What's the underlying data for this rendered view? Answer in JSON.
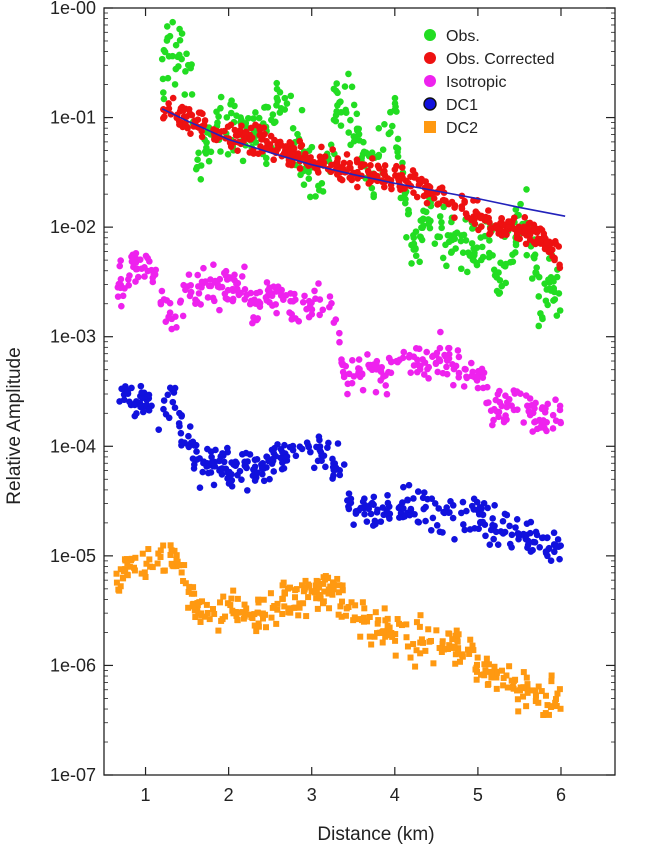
{
  "chart_data": {
    "type": "scatter",
    "xlabel": "Distance (km)",
    "ylabel": "Relative Amplitude",
    "xlim": [
      0.5,
      6.65
    ],
    "ylim_log10": [
      -7,
      0
    ],
    "y_scale": "log",
    "grid": false,
    "legend_position": "top-right",
    "x_ticks": [
      {
        "value": 1,
        "label": "1"
      },
      {
        "value": 2,
        "label": "2"
      },
      {
        "value": 3,
        "label": "3"
      },
      {
        "value": 4,
        "label": "4"
      },
      {
        "value": 5,
        "label": "5"
      },
      {
        "value": 6,
        "label": "6"
      }
    ],
    "y_ticks": [
      {
        "exp": 0,
        "label": "1e-00"
      },
      {
        "exp": -1,
        "label": "1e-01"
      },
      {
        "exp": -2,
        "label": "1e-02"
      },
      {
        "exp": -3,
        "label": "1e-03"
      },
      {
        "exp": -4,
        "label": "1e-04"
      },
      {
        "exp": -5,
        "label": "1e-05"
      },
      {
        "exp": -6,
        "label": "1e-06"
      },
      {
        "exp": -7,
        "label": "1e-07"
      }
    ],
    "series": [
      {
        "name": "Obs.",
        "marker": "circle",
        "color": "#22dd22",
        "trend": [
          [
            1.2,
            -0.55
          ],
          [
            1.3,
            -0.35
          ],
          [
            1.4,
            -0.4
          ],
          [
            1.55,
            -0.5
          ],
          [
            1.6,
            -1.6
          ],
          [
            1.7,
            -1.2
          ],
          [
            2.0,
            -1.1
          ],
          [
            2.3,
            -1.15
          ],
          [
            2.6,
            -1.0
          ],
          [
            2.8,
            -1.2
          ],
          [
            3.05,
            -1.6
          ],
          [
            3.2,
            -1.5
          ],
          [
            3.3,
            -0.85
          ],
          [
            3.5,
            -1.0
          ],
          [
            3.7,
            -1.55
          ],
          [
            3.9,
            -1.2
          ],
          [
            4.0,
            -0.95
          ],
          [
            4.1,
            -1.6
          ],
          [
            4.25,
            -2.2
          ],
          [
            4.4,
            -1.9
          ],
          [
            4.6,
            -2.1
          ],
          [
            4.8,
            -2.0
          ],
          [
            5.0,
            -2.2
          ],
          [
            5.15,
            -2.0
          ],
          [
            5.25,
            -2.5
          ],
          [
            5.45,
            -2.0
          ],
          [
            5.6,
            -1.9
          ],
          [
            5.75,
            -2.6
          ],
          [
            6.0,
            -2.6
          ]
        ],
        "spread": 0.3,
        "count": 420
      },
      {
        "name": "Obs. Corrected",
        "marker": "circle",
        "color": "#ee1111",
        "trend": [
          [
            1.2,
            -0.95
          ],
          [
            1.5,
            -1.0
          ],
          [
            1.8,
            -1.15
          ],
          [
            2.1,
            -1.2
          ],
          [
            2.4,
            -1.22
          ],
          [
            2.7,
            -1.3
          ],
          [
            3.0,
            -1.4
          ],
          [
            3.3,
            -1.45
          ],
          [
            3.6,
            -1.5
          ],
          [
            3.9,
            -1.55
          ],
          [
            4.2,
            -1.6
          ],
          [
            4.5,
            -1.7
          ],
          [
            4.8,
            -1.8
          ],
          [
            5.1,
            -1.95
          ],
          [
            5.4,
            -2.0
          ],
          [
            5.7,
            -2.05
          ],
          [
            6.0,
            -2.3
          ]
        ],
        "spread": 0.12,
        "count": 420
      },
      {
        "name": "Isotropic",
        "marker": "circle",
        "color": "#ee22ee",
        "trend": [
          [
            0.65,
            -2.55
          ],
          [
            0.85,
            -2.4
          ],
          [
            1.0,
            -2.3
          ],
          [
            1.2,
            -2.6
          ],
          [
            1.35,
            -2.9
          ],
          [
            1.5,
            -2.6
          ],
          [
            1.7,
            -2.55
          ],
          [
            2.0,
            -2.5
          ],
          [
            2.3,
            -2.7
          ],
          [
            2.6,
            -2.6
          ],
          [
            2.9,
            -2.75
          ],
          [
            3.1,
            -2.7
          ],
          [
            3.3,
            -2.8
          ],
          [
            3.4,
            -3.4
          ],
          [
            3.6,
            -3.3
          ],
          [
            3.9,
            -3.35
          ],
          [
            4.1,
            -3.1
          ],
          [
            4.3,
            -3.25
          ],
          [
            4.6,
            -3.2
          ],
          [
            4.8,
            -3.3
          ],
          [
            5.0,
            -3.35
          ],
          [
            5.2,
            -3.65
          ],
          [
            5.5,
            -3.55
          ],
          [
            5.7,
            -3.75
          ],
          [
            6.0,
            -3.7
          ]
        ],
        "spread": 0.18,
        "count": 380
      },
      {
        "name": "DC1",
        "marker": "circle",
        "color": "#1111dd",
        "trend": [
          [
            0.65,
            -3.55
          ],
          [
            0.9,
            -3.6
          ],
          [
            1.2,
            -3.7
          ],
          [
            1.35,
            -3.5
          ],
          [
            1.45,
            -3.95
          ],
          [
            1.7,
            -4.2
          ],
          [
            2.0,
            -4.15
          ],
          [
            2.3,
            -4.2
          ],
          [
            2.6,
            -4.1
          ],
          [
            2.9,
            -4.0
          ],
          [
            3.2,
            -4.1
          ],
          [
            3.4,
            -4.3
          ],
          [
            3.5,
            -4.55
          ],
          [
            3.8,
            -4.6
          ],
          [
            4.1,
            -4.55
          ],
          [
            4.4,
            -4.6
          ],
          [
            4.7,
            -4.65
          ],
          [
            5.0,
            -4.6
          ],
          [
            5.2,
            -4.75
          ],
          [
            5.5,
            -4.8
          ],
          [
            5.8,
            -4.9
          ],
          [
            6.0,
            -4.95
          ]
        ],
        "spread": 0.17,
        "count": 380
      },
      {
        "name": "DC2",
        "marker": "square",
        "color": "#ff9911",
        "trend": [
          [
            0.65,
            -5.15
          ],
          [
            0.9,
            -5.1
          ],
          [
            1.2,
            -5.0
          ],
          [
            1.4,
            -5.05
          ],
          [
            1.6,
            -5.5
          ],
          [
            2.0,
            -5.5
          ],
          [
            2.3,
            -5.6
          ],
          [
            2.6,
            -5.4
          ],
          [
            2.9,
            -5.35
          ],
          [
            3.2,
            -5.35
          ],
          [
            3.45,
            -5.5
          ],
          [
            3.7,
            -5.6
          ],
          [
            4.0,
            -5.7
          ],
          [
            4.3,
            -5.8
          ],
          [
            4.6,
            -5.75
          ],
          [
            4.9,
            -5.9
          ],
          [
            5.2,
            -6.1
          ],
          [
            5.5,
            -6.2
          ],
          [
            5.8,
            -6.3
          ],
          [
            6.0,
            -6.3
          ]
        ],
        "spread": 0.18,
        "count": 380
      }
    ],
    "fit_line": {
      "name": "DC1",
      "color": "#2222bb",
      "x": [
        1.2,
        1.5,
        2.0,
        2.5,
        3.0,
        3.5,
        4.0,
        4.5,
        5.0,
        5.5,
        6.05
      ],
      "y_log10": [
        -0.92,
        -1.03,
        -1.2,
        -1.32,
        -1.43,
        -1.52,
        -1.6,
        -1.67,
        -1.74,
        -1.82,
        -1.9
      ]
    },
    "legend": [
      {
        "label": "Obs.",
        "color": "#22dd22",
        "marker": "circle"
      },
      {
        "label": "Obs. Corrected",
        "color": "#ee1111",
        "marker": "circle"
      },
      {
        "label": "Isotropic",
        "color": "#ee22ee",
        "marker": "circle"
      },
      {
        "label": "DC1",
        "color": "#1111dd",
        "marker": "circle-outlined"
      },
      {
        "label": "DC2",
        "color": "#ff9911",
        "marker": "square"
      }
    ]
  }
}
